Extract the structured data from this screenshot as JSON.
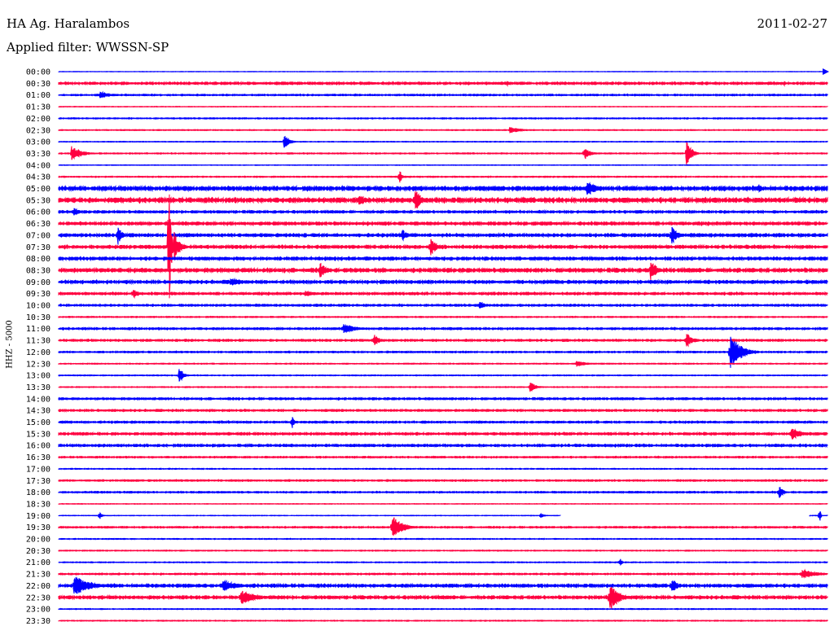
{
  "header": {
    "station": "HA Ag. Haralambos",
    "filter_text": "Applied filter: WWSSN-SP",
    "date": "2011-02-27"
  },
  "chart_data": {
    "type": "line",
    "title": "HA Ag. Haralambos",
    "subtitle": "Applied filter: WWSSN-SP",
    "ylabel": "HHZ - 5000",
    "date": "2011-02-27",
    "grid": false,
    "colors": [
      "#0000ff",
      "#ff0040"
    ],
    "rows": [
      "00:00",
      "00:30",
      "01:00",
      "01:30",
      "02:00",
      "02:30",
      "03:00",
      "03:30",
      "04:00",
      "04:30",
      "05:00",
      "05:30",
      "06:00",
      "06:30",
      "07:00",
      "07:30",
      "08:00",
      "08:30",
      "09:00",
      "09:30",
      "10:00",
      "10:30",
      "11:00",
      "11:30",
      "12:00",
      "12:30",
      "13:00",
      "13:30",
      "14:00",
      "14:30",
      "15:00",
      "15:30",
      "16:00",
      "16:30",
      "17:00",
      "17:30",
      "18:00",
      "18:30",
      "19:00",
      "19:30",
      "20:00",
      "20:30",
      "21:00",
      "21:30",
      "22:00",
      "22:30",
      "23:00",
      "23:30"
    ],
    "x_range_minutes": [
      0,
      30
    ],
    "noise": [
      0.2,
      1.2,
      0.8,
      0.3,
      0.6,
      0.5,
      0.4,
      0.6,
      0.3,
      0.6,
      2.0,
      2.2,
      1.2,
      1.5,
      1.5,
      1.5,
      1.5,
      1.8,
      1.5,
      1.2,
      1.0,
      0.6,
      1.0,
      1.0,
      0.8,
      0.5,
      0.5,
      0.5,
      1.0,
      1.0,
      1.0,
      1.2,
      1.2,
      0.8,
      0.5,
      0.8,
      0.8,
      0.3,
      0.3,
      0.8,
      0.5,
      0.5,
      0.5,
      0.8,
      1.5,
      1.5,
      0.5,
      0.5
    ],
    "events": [
      {
        "row": "00:30",
        "minute": 17.5,
        "amplitude": 4,
        "duration": 0.3
      },
      {
        "row": "00:30",
        "minute": 28.3,
        "amplitude": 3,
        "duration": 0.3
      },
      {
        "row": "01:00",
        "minute": 1.6,
        "amplitude": 5,
        "duration": 1.0
      },
      {
        "row": "02:30",
        "minute": 17.6,
        "amplitude": 4,
        "duration": 1.2
      },
      {
        "row": "03:00",
        "minute": 8.8,
        "amplitude": 10,
        "duration": 0.5
      },
      {
        "row": "03:30",
        "minute": 0.5,
        "amplitude": 10,
        "duration": 1.0
      },
      {
        "row": "03:30",
        "minute": 20.5,
        "amplitude": 9,
        "duration": 0.6
      },
      {
        "row": "03:30",
        "minute": 24.5,
        "amplitude": 18,
        "duration": 0.5
      },
      {
        "row": "04:30",
        "minute": 13.3,
        "amplitude": 12,
        "duration": 0.2
      },
      {
        "row": "05:00",
        "minute": 20.6,
        "amplitude": 10,
        "duration": 1.2
      },
      {
        "row": "05:00",
        "minute": 27.3,
        "amplitude": 8,
        "duration": 0.3
      },
      {
        "row": "05:30",
        "minute": 11.7,
        "amplitude": 8,
        "duration": 0.8
      },
      {
        "row": "05:30",
        "minute": 13.9,
        "amplitude": 16,
        "duration": 0.6
      },
      {
        "row": "06:00",
        "minute": 0.6,
        "amplitude": 6,
        "duration": 0.5
      },
      {
        "row": "07:00",
        "minute": 2.3,
        "amplitude": 14,
        "duration": 0.4
      },
      {
        "row": "07:00",
        "minute": 13.4,
        "amplitude": 8,
        "duration": 0.5
      },
      {
        "row": "07:00",
        "minute": 23.9,
        "amplitude": 14,
        "duration": 0.6
      },
      {
        "row": "07:30",
        "minute": 4.3,
        "amplitude": 115,
        "duration": 0.2
      },
      {
        "row": "07:30",
        "minute": 4.5,
        "amplitude": 20,
        "duration": 0.6
      },
      {
        "row": "07:30",
        "minute": 14.5,
        "amplitude": 14,
        "duration": 0.6
      },
      {
        "row": "08:30",
        "minute": 10.2,
        "amplitude": 12,
        "duration": 0.6
      },
      {
        "row": "08:30",
        "minute": 23.1,
        "amplitude": 14,
        "duration": 0.6
      },
      {
        "row": "09:00",
        "minute": 6.7,
        "amplitude": 5,
        "duration": 1.5
      },
      {
        "row": "09:30",
        "minute": 2.9,
        "amplitude": 8,
        "duration": 0.5
      },
      {
        "row": "09:30",
        "minute": 9.6,
        "amplitude": 4,
        "duration": 1.2
      },
      {
        "row": "10:00",
        "minute": 16.4,
        "amplitude": 6,
        "duration": 0.6
      },
      {
        "row": "11:00",
        "minute": 11.1,
        "amplitude": 7,
        "duration": 1.2
      },
      {
        "row": "11:30",
        "minute": 12.3,
        "amplitude": 9,
        "duration": 0.5
      },
      {
        "row": "11:30",
        "minute": 24.5,
        "amplitude": 9,
        "duration": 0.7
      },
      {
        "row": "12:00",
        "minute": 26.2,
        "amplitude": 24,
        "duration": 1.1
      },
      {
        "row": "12:30",
        "minute": 20.2,
        "amplitude": 4,
        "duration": 1.0
      },
      {
        "row": "13:00",
        "minute": 4.7,
        "amplitude": 12,
        "duration": 0.4
      },
      {
        "row": "13:30",
        "minute": 18.4,
        "amplitude": 8,
        "duration": 0.5
      },
      {
        "row": "15:00",
        "minute": 9.1,
        "amplitude": 10,
        "duration": 0.2
      },
      {
        "row": "15:30",
        "minute": 28.6,
        "amplitude": 8,
        "duration": 1.0
      },
      {
        "row": "18:00",
        "minute": 28.1,
        "amplitude": 10,
        "duration": 0.4
      },
      {
        "row": "19:00",
        "minute": 1.6,
        "amplitude": 6,
        "duration": 0.2
      },
      {
        "row": "19:00",
        "minute": 18.8,
        "amplitude": 4,
        "duration": 0.3
      },
      {
        "row": "19:00",
        "minute": 29.7,
        "amplitude": 14,
        "duration": 0.1
      },
      {
        "row": "19:30",
        "minute": 13.0,
        "amplitude": 16,
        "duration": 1.0
      },
      {
        "row": "21:00",
        "minute": 21.9,
        "amplitude": 7,
        "duration": 0.2
      },
      {
        "row": "21:30",
        "minute": 29.0,
        "amplitude": 6,
        "duration": 1.5
      },
      {
        "row": "22:00",
        "minute": 0.6,
        "amplitude": 14,
        "duration": 1.5
      },
      {
        "row": "22:00",
        "minute": 6.4,
        "amplitude": 8,
        "duration": 1.4
      },
      {
        "row": "22:00",
        "minute": 23.9,
        "amplitude": 10,
        "duration": 0.6
      },
      {
        "row": "22:30",
        "minute": 7.1,
        "amplitude": 10,
        "duration": 1.5
      },
      {
        "row": "22:30",
        "minute": 21.5,
        "amplitude": 18,
        "duration": 1.0
      }
    ],
    "gaps": [
      {
        "row": "19:00",
        "from_minute": 19.6,
        "to_minute": 29.3
      }
    ]
  }
}
